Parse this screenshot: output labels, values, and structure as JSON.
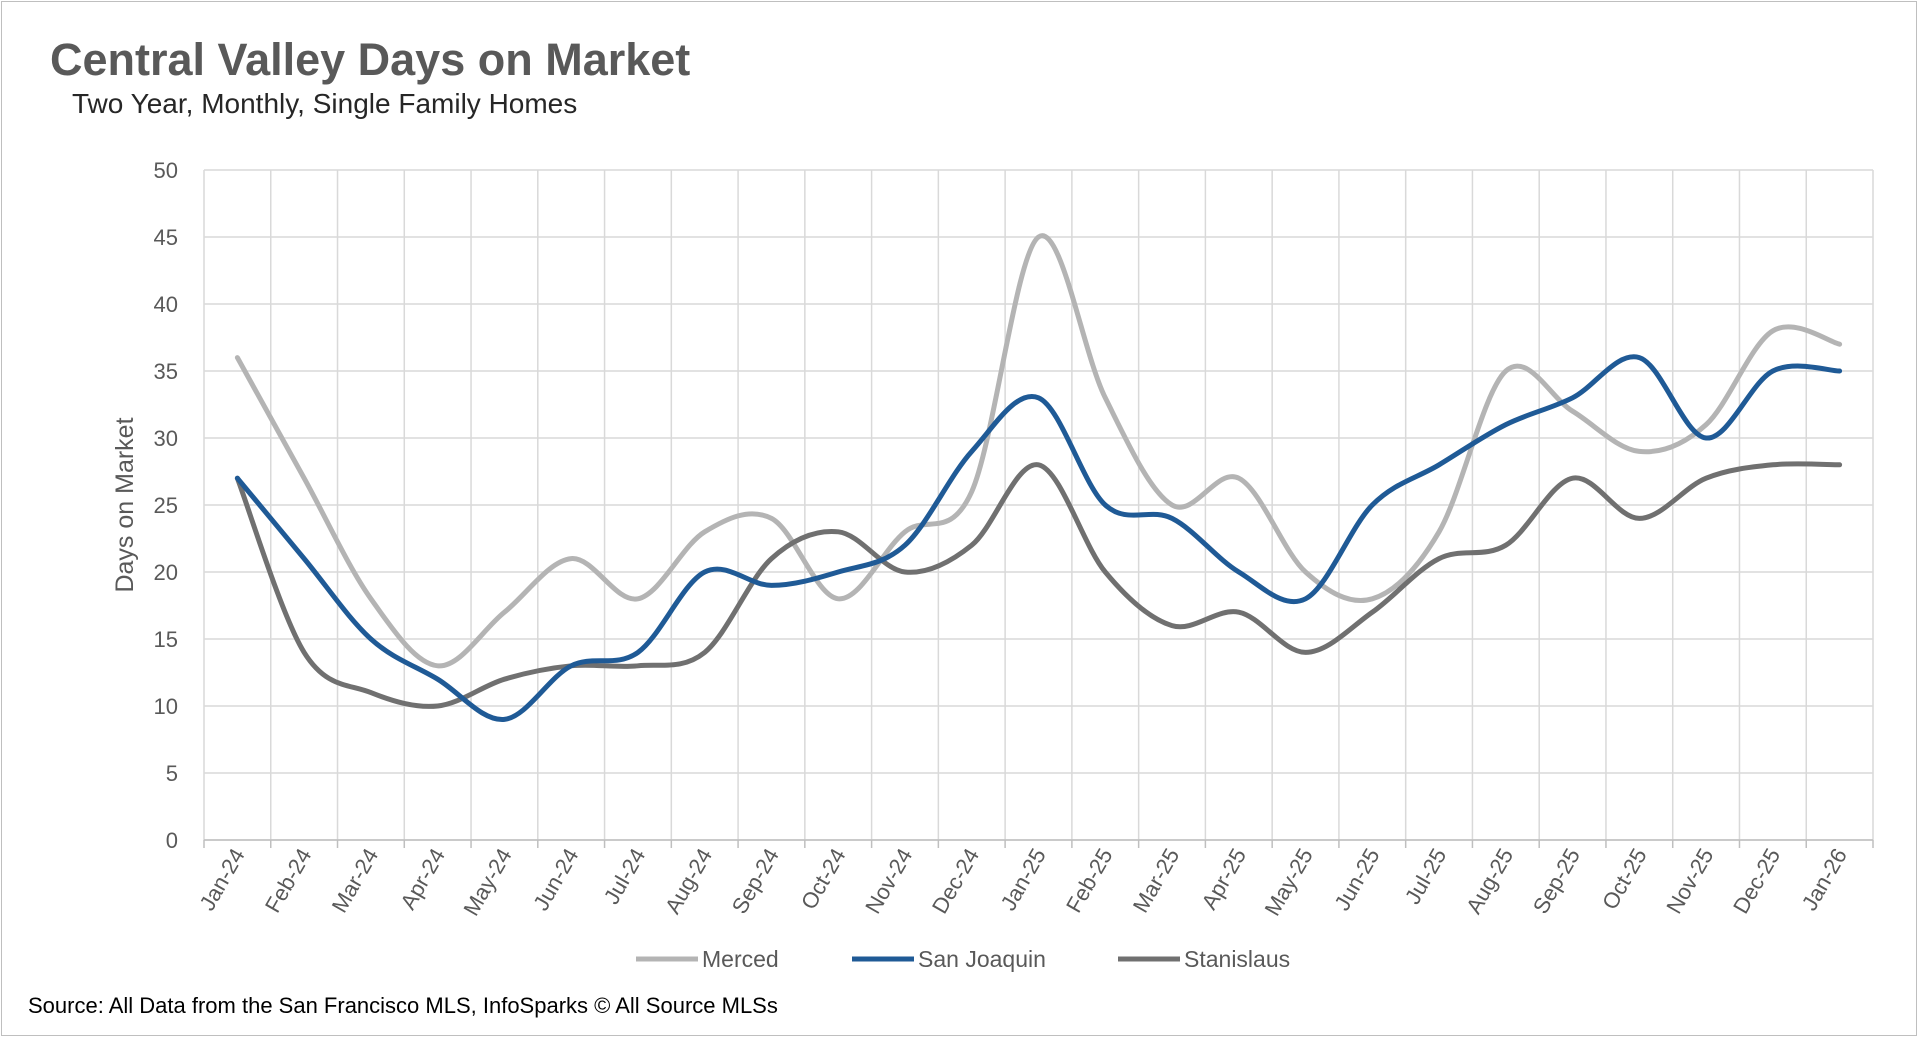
{
  "chart_data": {
    "type": "line",
    "title": "Central Valley Days on Market",
    "subtitle": "Two Year, Monthly, Single Family Homes",
    "xlabel": "",
    "ylabel": "Days on Market",
    "ylim": [
      0,
      50
    ],
    "yticks": [
      0,
      5,
      10,
      15,
      20,
      25,
      30,
      35,
      40,
      45,
      50
    ],
    "grid": true,
    "legend_position": "bottom",
    "categories": [
      "Jan-24",
      "Feb-24",
      "Mar-24",
      "Apr-24",
      "May-24",
      "Jun-24",
      "Jul-24",
      "Aug-24",
      "Sep-24",
      "Oct-24",
      "Nov-24",
      "Dec-24",
      "Jan-25",
      "Feb-25",
      "Mar-25",
      "Apr-25",
      "May-25",
      "Jun-25",
      "Jul-25",
      "Aug-25",
      "Sep-25",
      "Oct-25",
      "Nov-25",
      "Dec-25",
      "Jan-26"
    ],
    "series": [
      {
        "name": "Merced",
        "color": "#b4b4b4",
        "values": [
          36,
          27,
          18,
          13,
          17,
          21,
          18,
          23,
          24,
          18,
          23,
          26,
          45,
          33,
          25,
          27,
          20,
          18,
          23,
          35,
          32,
          29,
          31,
          38,
          37
        ]
      },
      {
        "name": "San Joaquin",
        "color": "#1f5a96",
        "values": [
          27,
          21,
          15,
          12,
          9,
          13,
          14,
          20,
          19,
          20,
          22,
          29,
          33,
          25,
          24,
          20,
          18,
          25,
          28,
          31,
          33,
          36,
          30,
          35,
          35
        ]
      },
      {
        "name": "Stanislaus",
        "color": "#707070",
        "values": [
          27,
          14,
          11,
          10,
          12,
          13,
          13,
          14,
          21,
          23,
          20,
          22,
          28,
          20,
          16,
          17,
          14,
          17,
          21,
          22,
          27,
          24,
          27,
          28,
          28
        ]
      }
    ]
  },
  "source": "Source: All Data from the San Francisco MLS, InfoSparks © All Source MLSs"
}
